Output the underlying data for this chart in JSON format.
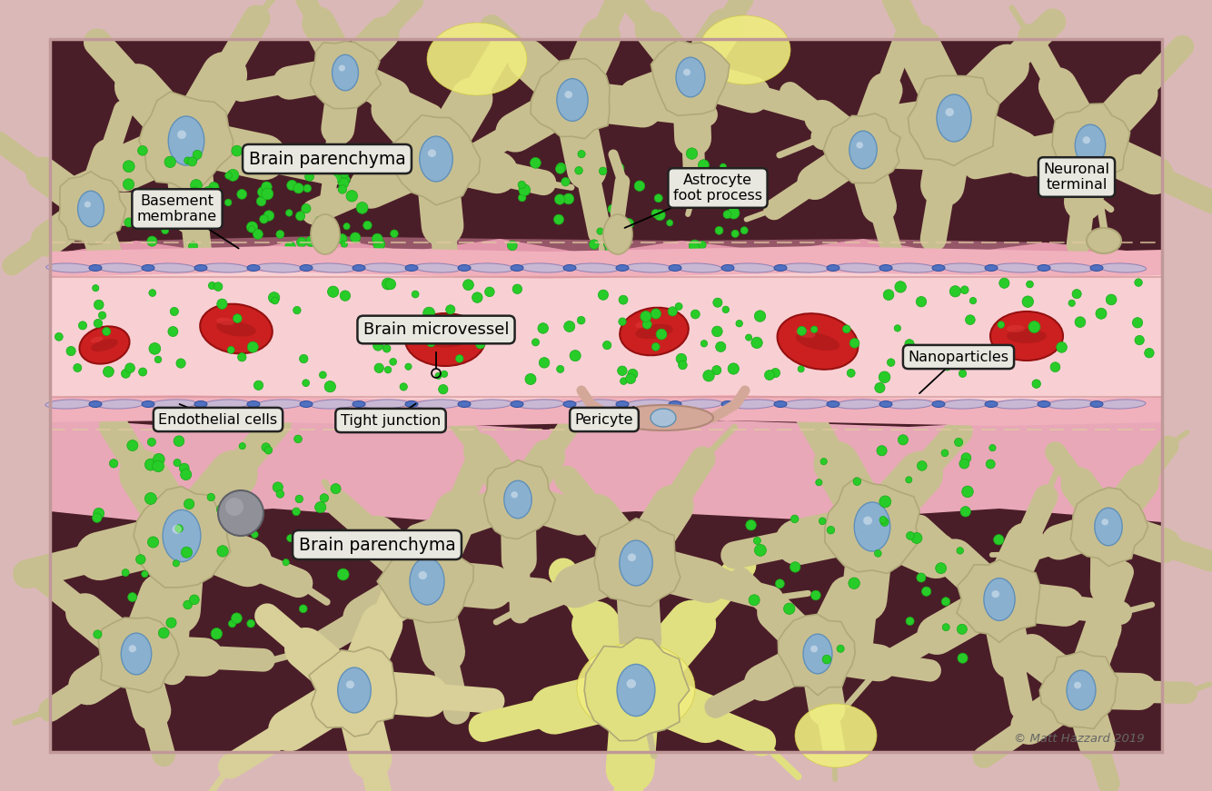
{
  "background_color": "#dbb8b8",
  "content_bg": "#c8a0a0",
  "parenchyma_dark": "#4a1e28",
  "neuron_body": "#c8bf90",
  "neuron_outline": "#b0a878",
  "neuron_nucleus": "#8ab0d0",
  "vessel_pink": "#f0b8c0",
  "vessel_wall_pink": "#e898a8",
  "vessel_lumen": "#f5c8cc",
  "blood_cell_red": "#c82020",
  "blood_cell_dark": "#901010",
  "endothelial_fill": "#c0b0d0",
  "endothelial_outline": "#9080b0",
  "tight_junction": "#6080c0",
  "nanoparticle": "#28cc28",
  "nanoparticle_outline": "#18aa18",
  "astrocyte_yellow": "#e8e060",
  "pink_tissue_top": "#e8a0b0",
  "pink_tissue_bottom": "#e8a8b8",
  "gray_cell": "#888890",
  "copyright": "© Matt Hazzard 2019",
  "label_fc": "#e8e8e0",
  "label_ec": "#222222",
  "labels": {
    "brain_parenchyma_top": "Brain parenchyma",
    "brain_parenchyma_bottom": "Brain parenchyma",
    "brain_microvessel": "Brain microvessel",
    "basement_membrane": "Basement\nmembrane",
    "endothelial_cells": "Endothelial cells",
    "tight_junction": "Tight junction",
    "pericyte": "Pericyte",
    "astrocyte_foot": "Astrocyte\nfoot process",
    "neuronal_terminal": "Neuronal\nterminal",
    "nanoparticles": "Nanoparticles"
  }
}
